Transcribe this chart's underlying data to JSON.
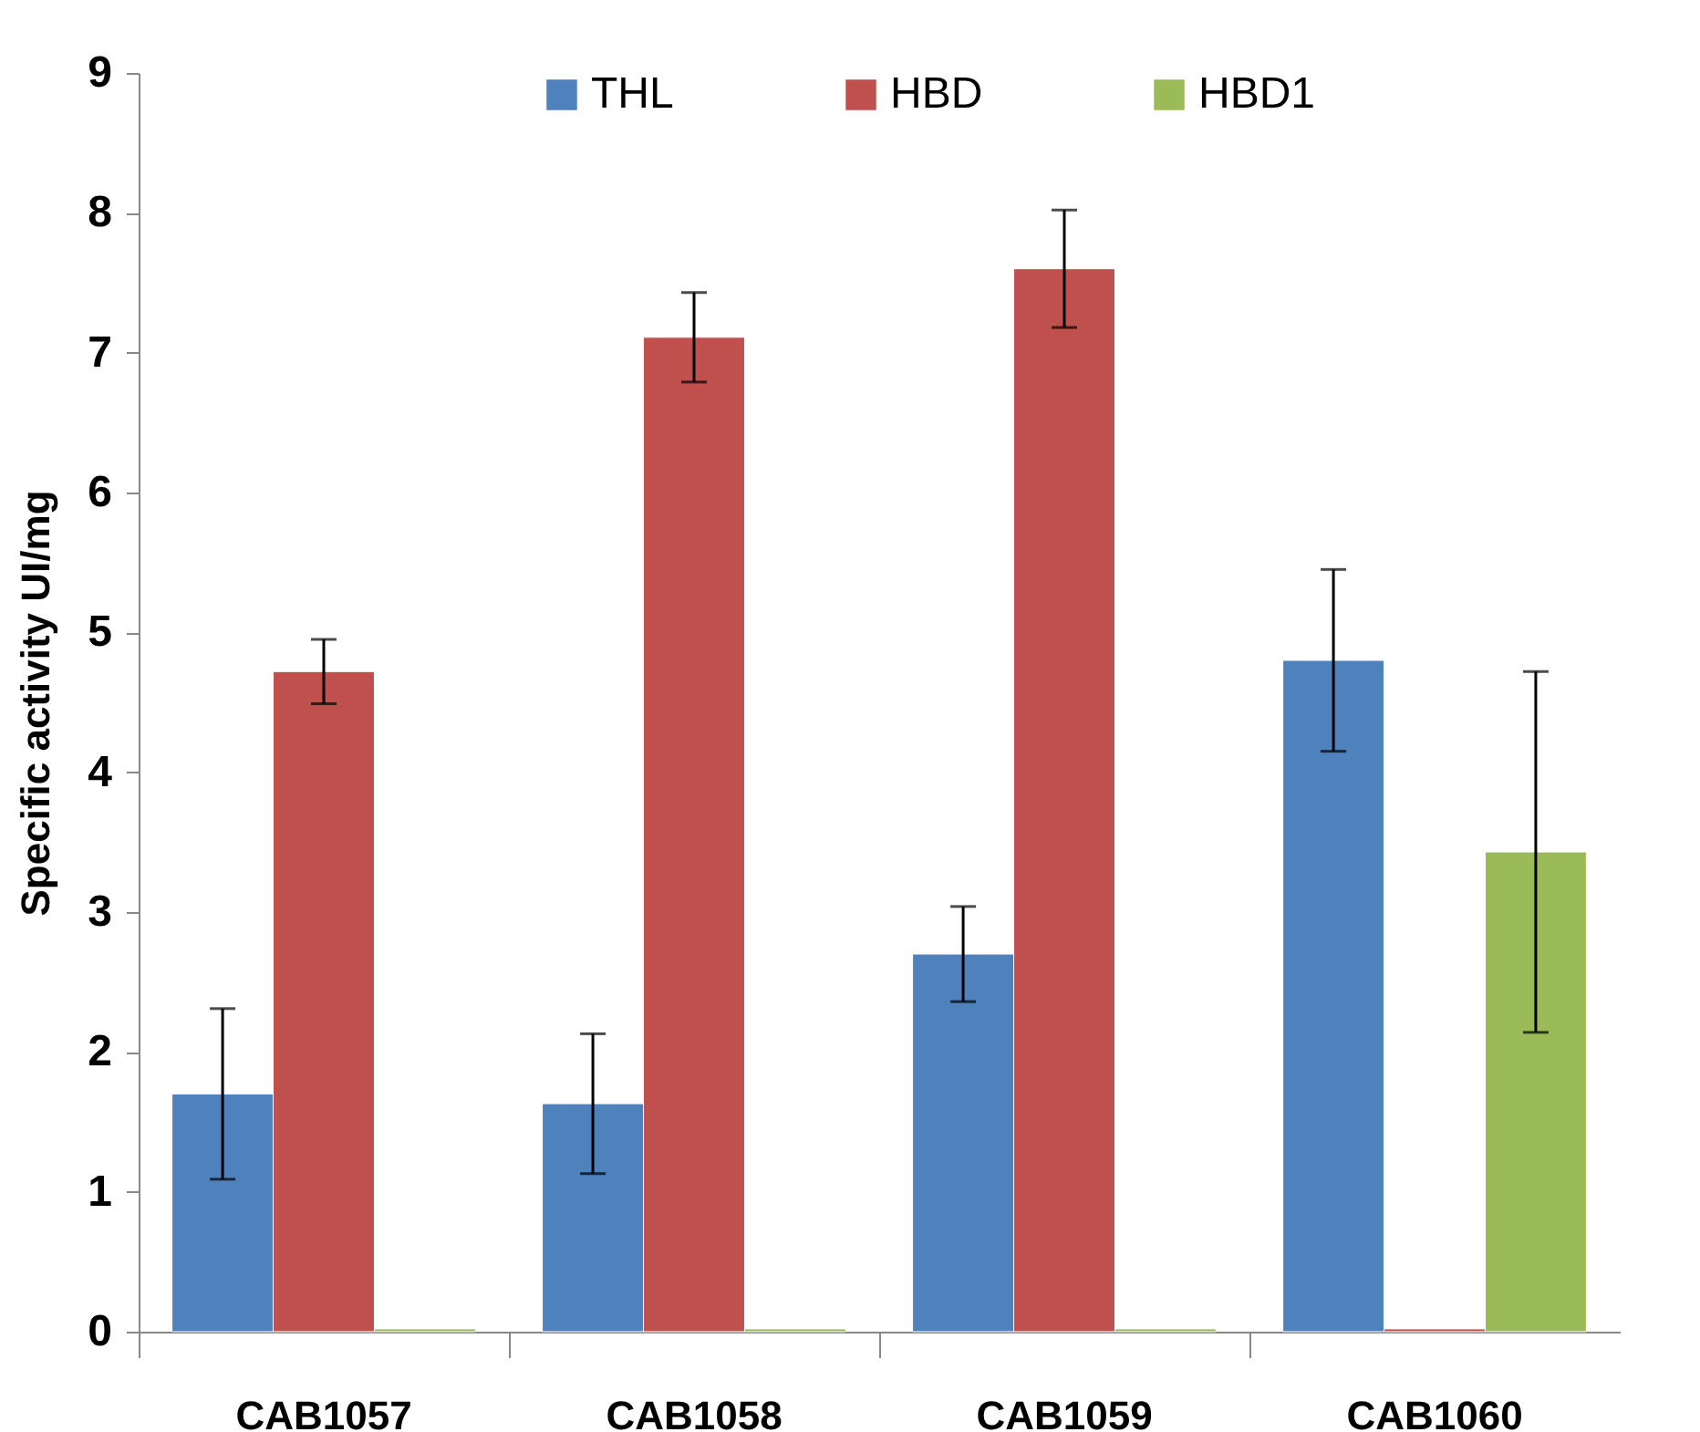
{
  "chart_data": {
    "type": "bar",
    "ylabel": "Specific activity UI/mg",
    "categories": [
      "CAB1057",
      "CAB1058",
      "CAB1059",
      "CAB1060"
    ],
    "series": [
      {
        "name": "THL",
        "color": "#4f81bd",
        "values": [
          1.7,
          1.63,
          2.7,
          4.8
        ],
        "errors": [
          0.61,
          0.5,
          0.34,
          0.65
        ]
      },
      {
        "name": "HBD",
        "color": "#c0504d",
        "values": [
          4.72,
          7.11,
          7.6,
          0.02
        ],
        "errors": [
          0.23,
          0.32,
          0.42,
          null
        ]
      },
      {
        "name": "HBD1",
        "color": "#9bbb59",
        "values": [
          0.02,
          0.02,
          0.02,
          3.43
        ],
        "errors": [
          null,
          null,
          null,
          1.29
        ]
      }
    ],
    "ylim": [
      0,
      9
    ],
    "yticks": [
      0,
      1,
      2,
      3,
      4,
      5,
      6,
      7,
      8,
      9
    ],
    "grid": false,
    "legend": "top"
  }
}
